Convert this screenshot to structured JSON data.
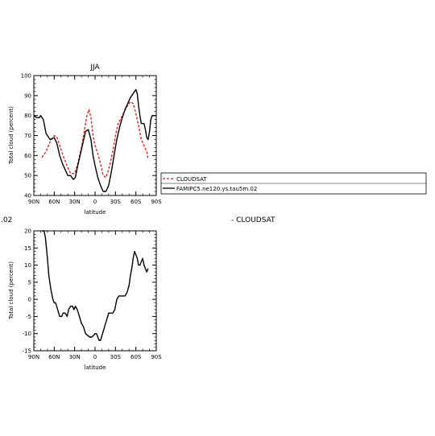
{
  "chart_data": [
    {
      "type": "line",
      "title": "JJA",
      "xlabel": "latitude",
      "ylabel": "Total cloud (percent)",
      "ylim": [
        40,
        100
      ],
      "yticks": [
        40,
        50,
        60,
        70,
        80,
        90,
        100
      ],
      "xlim": [
        90,
        -90
      ],
      "xticks": [
        90,
        60,
        30,
        0,
        -30,
        -60,
        -90
      ],
      "xticklabels": [
        "90N",
        "60N",
        "30N",
        "0",
        "30S",
        "60S",
        "90S"
      ],
      "grid": false,
      "legend": "right, outside plot",
      "series": [
        {
          "name": "CLOUDSAT",
          "color": "#e8201e",
          "dash": true,
          "x": [
            78,
            72,
            66,
            60,
            56,
            52,
            46,
            40,
            36,
            30,
            26,
            20,
            16,
            12,
            9,
            6,
            3,
            0,
            -4,
            -8,
            -12,
            -16,
            -20,
            -26,
            -30,
            -34,
            -40,
            -46,
            -52,
            -56,
            -60,
            -64,
            -68,
            -72,
            -76,
            -78
          ],
          "y": [
            59,
            62,
            67,
            70,
            69,
            65,
            59,
            54,
            51,
            51,
            55,
            64,
            72,
            80,
            83,
            79,
            70,
            65,
            61,
            56,
            50,
            49,
            53,
            62,
            70,
            76,
            80,
            84,
            87,
            86,
            81,
            75,
            68,
            65,
            62,
            58
          ]
        },
        {
          "name": "FAMIPC5.ne120.ys.tau5m.02",
          "color": "#000000",
          "dash": false,
          "x": [
            90,
            86,
            82,
            80,
            78,
            76,
            72,
            66,
            60,
            56,
            52,
            48,
            44,
            40,
            36,
            32,
            29,
            26,
            22,
            18,
            14,
            10,
            6,
            3,
            0,
            -4,
            -8,
            -12,
            -16,
            -20,
            -24,
            -28,
            -32,
            -36,
            -40,
            -44,
            -48,
            -52,
            -56,
            -60,
            -62,
            -64,
            -66,
            -68,
            -70,
            -72,
            -74,
            -76,
            -78,
            -80,
            -82,
            -84,
            -86,
            -88,
            -90
          ],
          "y": [
            80,
            79,
            79,
            80,
            79,
            78,
            71,
            68,
            69,
            66,
            60,
            56,
            53,
            50,
            50,
            48,
            49,
            54,
            60,
            66,
            72,
            73,
            68,
            60,
            55,
            49,
            45,
            42,
            42,
            45,
            52,
            60,
            68,
            74,
            79,
            83,
            86,
            89,
            91,
            93,
            91,
            85,
            80,
            76,
            76,
            76,
            73,
            69,
            68,
            72,
            78,
            80,
            80,
            80,
            80
          ]
        }
      ]
    },
    {
      "type": "line",
      "title": "",
      "xlabel": "latitude",
      "ylabel": "Total cloud (percent)",
      "ylim": [
        -15,
        20
      ],
      "yticks": [
        -15,
        -10,
        -5,
        0,
        5,
        10,
        15,
        20
      ],
      "xlim": [
        90,
        -90
      ],
      "xticks": [
        90,
        60,
        30,
        0,
        -30,
        -60,
        -90
      ],
      "xticklabels": [
        "90N",
        "60N",
        "30N",
        "0",
        "30S",
        "60S",
        "90S"
      ],
      "grid": false,
      "series": [
        {
          "name": "",
          "color": "#000000",
          "dash": false,
          "x": [
            78,
            75,
            73,
            72,
            70,
            68,
            65,
            62,
            60,
            58,
            55,
            52,
            49,
            47,
            44,
            41,
            39,
            36,
            33,
            31,
            29,
            26,
            23,
            20,
            17,
            14,
            11,
            8,
            5,
            2,
            0,
            -2,
            -4,
            -6,
            -8,
            -11,
            -14,
            -17,
            -20,
            -23,
            -26,
            -29,
            -32,
            -35,
            -38,
            -41,
            -44,
            -47,
            -50,
            -52,
            -54,
            -56,
            -58,
            -60,
            -62,
            -64,
            -66,
            -68,
            -70,
            -72,
            -74,
            -76,
            -78
          ],
          "y": [
            20,
            20,
            18,
            16,
            12,
            7,
            3,
            0,
            -1,
            -1,
            -3,
            -5,
            -5,
            -4,
            -4,
            -5,
            -3,
            -2,
            -2,
            -3,
            -2,
            -3,
            -5,
            -7,
            -8,
            -10,
            -10.5,
            -11,
            -11,
            -10.5,
            -10,
            -10,
            -11,
            -12,
            -12,
            -10,
            -8,
            -6,
            -4,
            -4,
            -4,
            -3,
            0,
            1,
            1,
            1,
            1,
            2,
            4,
            7,
            9,
            12,
            14,
            13,
            12,
            10,
            10,
            11,
            12,
            10,
            9,
            8,
            9
          ]
        }
      ]
    }
  ],
  "right_panel": {
    "legend_items": [
      "CLOUDSAT",
      "FAMIPC5.ne120.ys.tau5m.02"
    ],
    "stray_label": "- CLOUDSAT",
    "cut_off_label": ".02"
  }
}
